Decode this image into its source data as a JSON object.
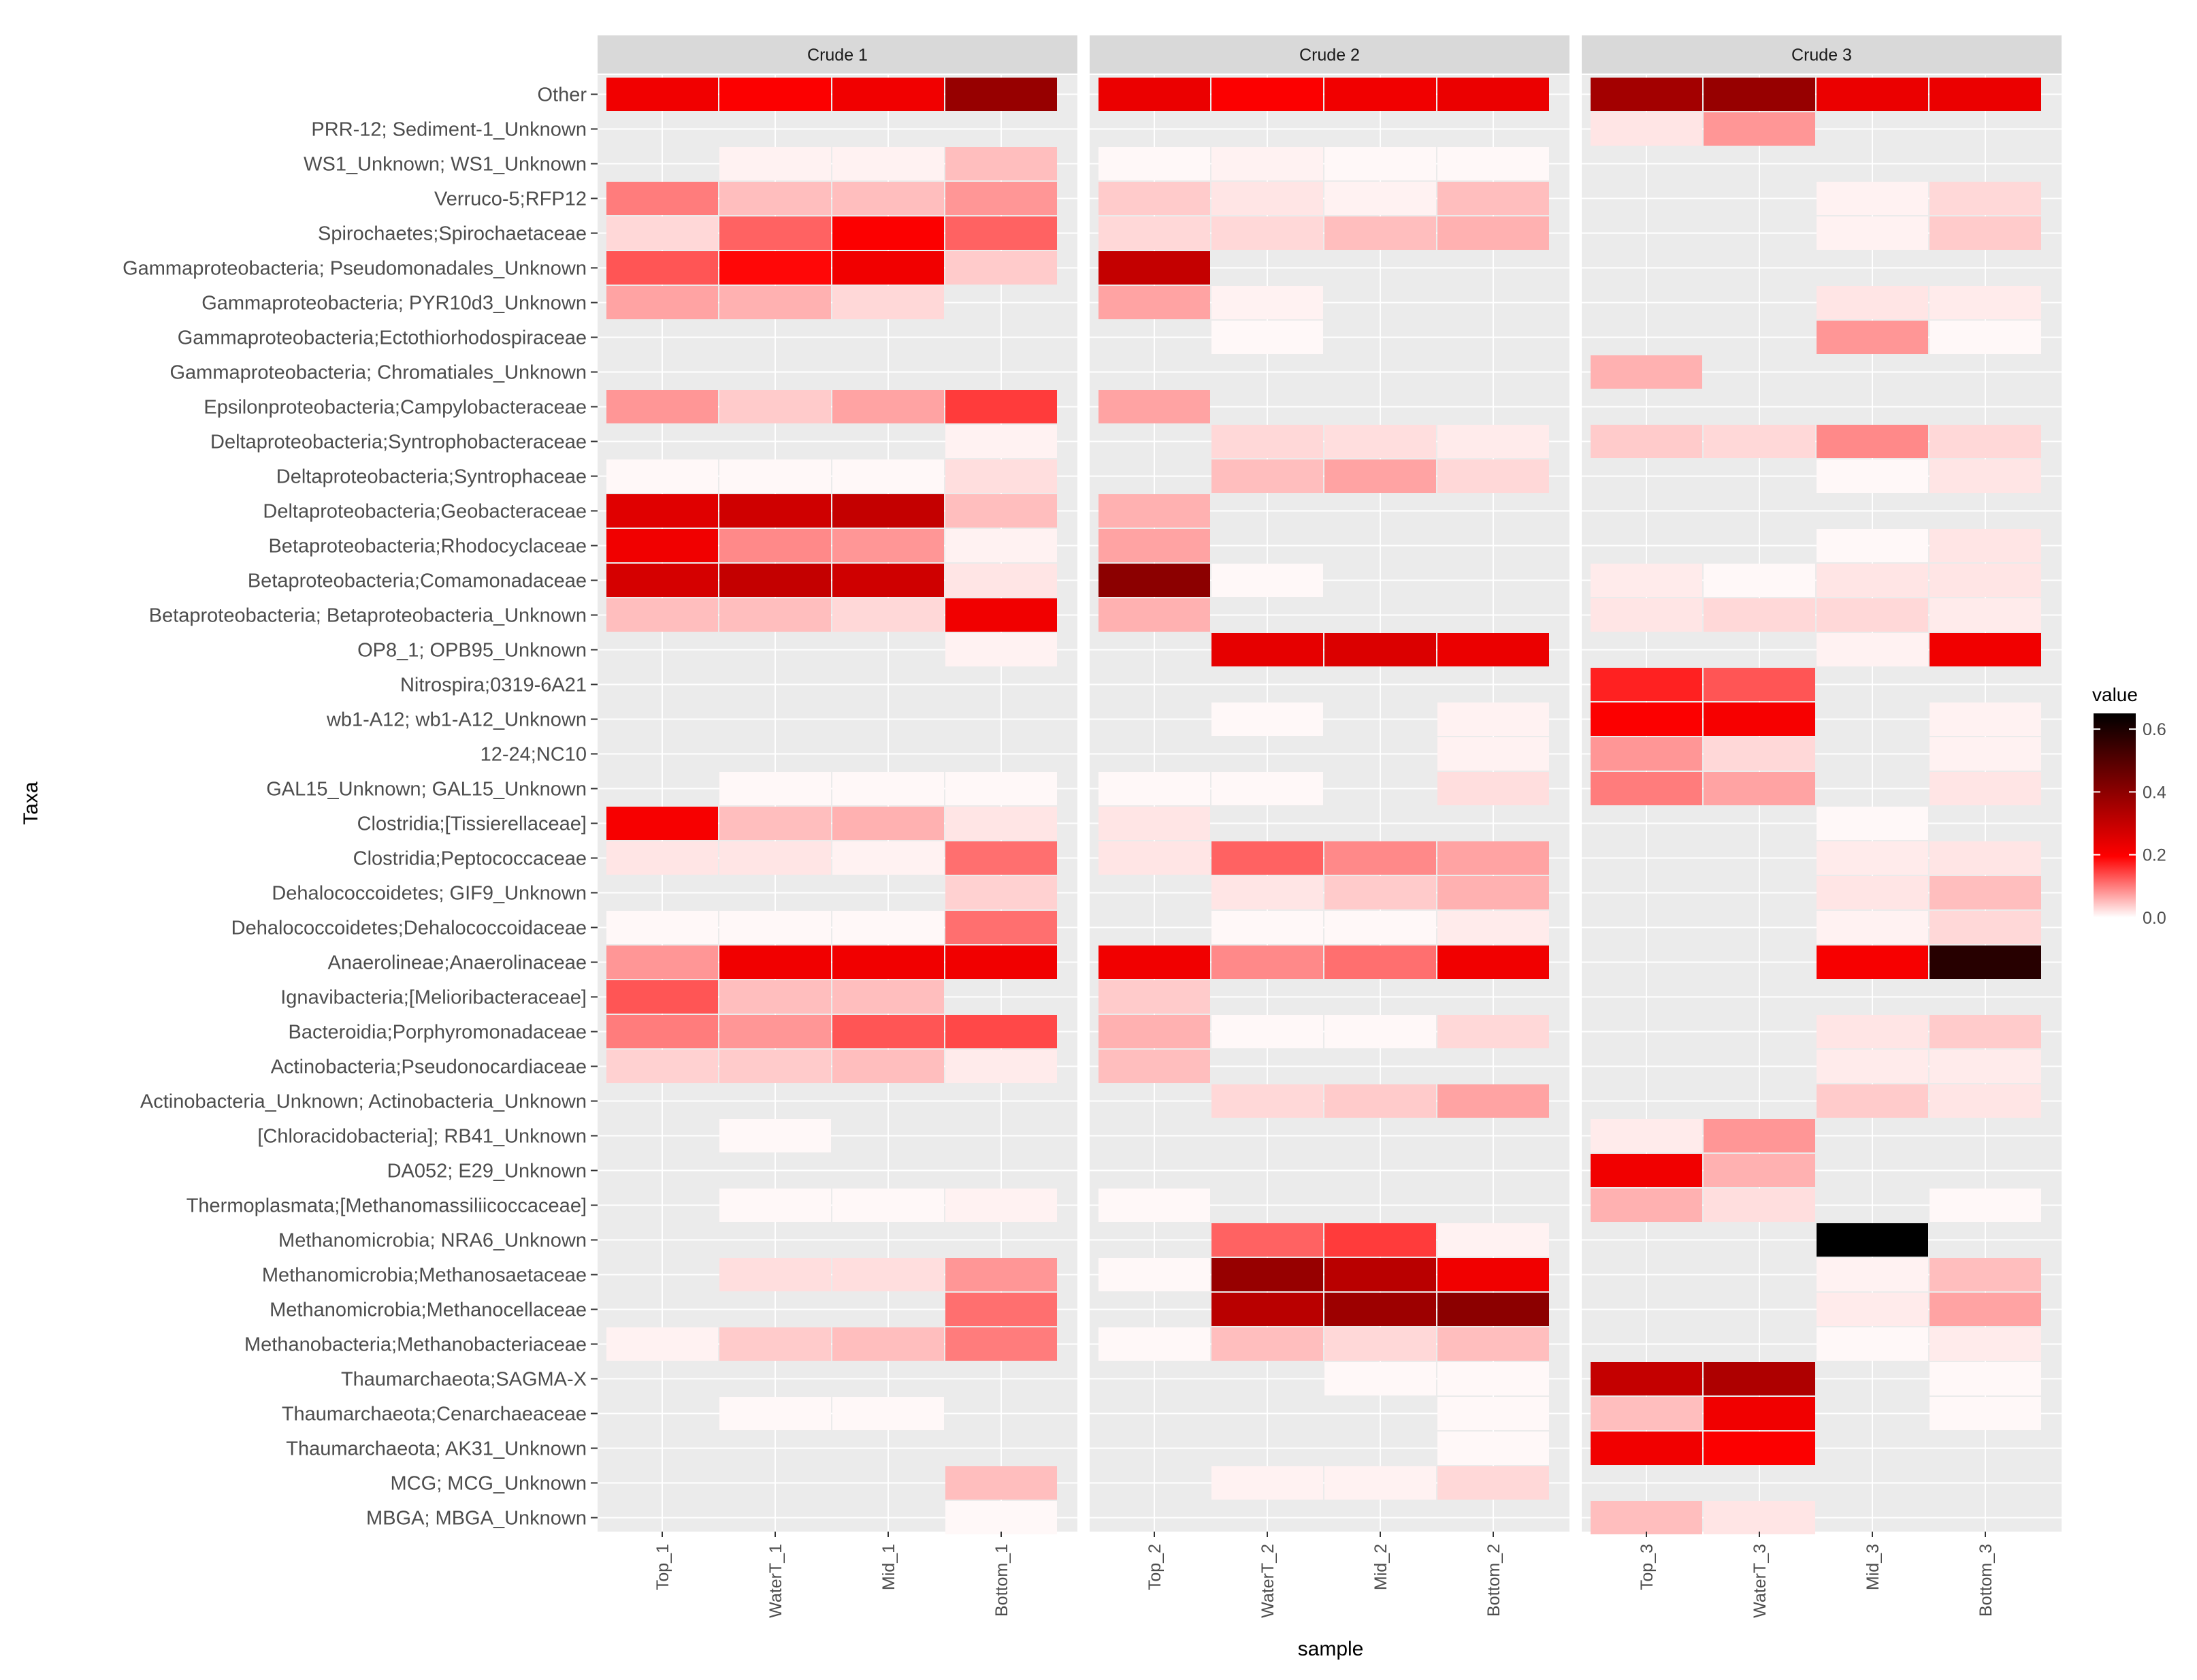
{
  "chart_data": {
    "type": "heatmap",
    "title": "",
    "xlabel": "sample",
    "ylabel": "Taxa",
    "facets": [
      {
        "label": "Crude 1",
        "samples": [
          "Top_1",
          "WaterT_1",
          "Mid_1",
          "Bottom_1"
        ]
      },
      {
        "label": "Crude 2",
        "samples": [
          "Top_2",
          "WaterT_2",
          "Mid_2",
          "Bottom_2"
        ]
      },
      {
        "label": "Crude 3",
        "samples": [
          "Top_3",
          "WaterT_3",
          "Mid_3",
          "Bottom_3"
        ]
      }
    ],
    "legend": {
      "title": "value",
      "ticks": [
        "0.0",
        "0.2",
        "0.4",
        "0.6"
      ],
      "range": [
        0,
        0.65
      ],
      "colors": [
        "#ffffff",
        "#ff0000",
        "#000000"
      ]
    },
    "taxa": [
      "Other",
      "PRR-12; Sediment-1_Unknown",
      "WS1_Unknown; WS1_Unknown",
      "Verruco-5;RFP12",
      "Spirochaetes;Spirochaetaceae",
      "Gammaproteobacteria; Pseudomonadales_Unknown",
      "Gammaproteobacteria; PYR10d3_Unknown",
      "Gammaproteobacteria;Ectothiorhodospiraceae",
      "Gammaproteobacteria; Chromatiales_Unknown",
      "Epsilonproteobacteria;Campylobacteraceae",
      "Deltaproteobacteria;Syntrophobacteraceae",
      "Deltaproteobacteria;Syntrophaceae",
      "Deltaproteobacteria;Geobacteraceae",
      "Betaproteobacteria;Rhodocyclaceae",
      "Betaproteobacteria;Comamonadaceae",
      "Betaproteobacteria; Betaproteobacteria_Unknown",
      "OP8_1; OPB95_Unknown",
      "Nitrospira;0319-6A21",
      "wb1-A12; wb1-A12_Unknown",
      "12-24;NC10",
      "GAL15_Unknown; GAL15_Unknown",
      "Clostridia;[Tissierellaceae]",
      "Clostridia;Peptococcaceae",
      "Dehalococcoidetes; GIF9_Unknown",
      "Dehalococcoidetes;Dehalococcoidaceae",
      "Anaerolineae;Anaerolinaceae",
      "Ignavibacteria;[Melioribacteraceae]",
      "Bacteroidia;Porphyromonadaceae",
      "Actinobacteria;Pseudonocardiaceae",
      "Actinobacteria_Unknown; Actinobacteria_Unknown",
      "[Chloracidobacteria]; RB41_Unknown",
      "DA052; E29_Unknown",
      "Thermoplasmata;[Methanomassiliicoccaceae]",
      "Methanomicrobia; NRA6_Unknown",
      "Methanomicrobia;Methanosaetaceae",
      "Methanomicrobia;Methanocellaceae",
      "Methanobacteria;Methanobacteriaceae",
      "Thaumarchaeota;SAGMA-X",
      "Thaumarchaeota;Cenarchaeaceae",
      "Thaumarchaeota; AK31_Unknown",
      "MCG; MCG_Unknown",
      "MBGA; MBGA_Unknown"
    ],
    "values": [
      [
        0.22,
        0.2,
        0.22,
        0.38,
        0.23,
        0.2,
        0.22,
        0.23,
        0.36,
        0.38,
        0.23,
        0.23
      ],
      [
        0,
        0,
        0,
        0,
        0,
        0,
        0,
        0,
        0.02,
        0.08,
        0,
        0
      ],
      [
        0,
        0.01,
        0.01,
        0.05,
        0.005,
        0.01,
        0.005,
        0.005,
        0,
        0,
        0,
        0
      ],
      [
        0.1,
        0.05,
        0.05,
        0.08,
        0.04,
        0.02,
        0.01,
        0.05,
        0,
        0,
        0.01,
        0.03
      ],
      [
        0.03,
        0.12,
        0.2,
        0.12,
        0.03,
        0.03,
        0.05,
        0.06,
        0,
        0,
        0.01,
        0.04
      ],
      [
        0.13,
        0.19,
        0.22,
        0.04,
        0.3,
        0,
        0,
        0,
        0,
        0,
        0,
        0
      ],
      [
        0.07,
        0.06,
        0.03,
        0,
        0.07,
        0.01,
        0,
        0,
        0,
        0,
        0.02,
        0.015
      ],
      [
        0,
        0,
        0,
        0,
        0,
        0.005,
        0,
        0,
        0,
        0,
        0.08,
        0.005
      ],
      [
        0,
        0,
        0,
        0,
        0,
        0,
        0,
        0,
        0.06,
        0,
        0,
        0
      ],
      [
        0.08,
        0.04,
        0.07,
        0.15,
        0.07,
        0,
        0,
        0,
        0,
        0,
        0,
        0
      ],
      [
        0,
        0,
        0,
        0.01,
        0,
        0.03,
        0.025,
        0.015,
        0.04,
        0.03,
        0.09,
        0.03
      ],
      [
        0.005,
        0.005,
        0.005,
        0.025,
        0,
        0.05,
        0.07,
        0.03,
        0,
        0,
        0.005,
        0.02
      ],
      [
        0.25,
        0.28,
        0.3,
        0.05,
        0.06,
        0,
        0,
        0,
        0,
        0,
        0,
        0
      ],
      [
        0.22,
        0.09,
        0.08,
        0.01,
        0.07,
        0,
        0,
        0,
        0,
        0,
        0.005,
        0.02
      ],
      [
        0.27,
        0.3,
        0.28,
        0.02,
        0.4,
        0.005,
        0,
        0,
        0.015,
        0.005,
        0.02,
        0.02
      ],
      [
        0.05,
        0.05,
        0.03,
        0.22,
        0.06,
        0,
        0,
        0,
        0.02,
        0.03,
        0.03,
        0.015
      ],
      [
        0,
        0,
        0,
        0.01,
        0,
        0.24,
        0.26,
        0.23,
        0,
        0,
        0.01,
        0.22
      ],
      [
        0,
        0,
        0,
        0,
        0,
        0,
        0,
        0,
        0.17,
        0.13,
        0,
        0
      ],
      [
        0,
        0,
        0,
        0,
        0,
        0.005,
        0,
        0.01,
        0.2,
        0.21,
        0,
        0.01
      ],
      [
        0,
        0,
        0,
        0,
        0,
        0,
        0,
        0.01,
        0.08,
        0.03,
        0,
        0.01
      ],
      [
        0,
        0.005,
        0.005,
        0.005,
        0.005,
        0.005,
        0,
        0.025,
        0.1,
        0.07,
        0,
        0.02
      ],
      [
        0.21,
        0.05,
        0.06,
        0.02,
        0.02,
        0,
        0,
        0,
        0,
        0,
        0.005,
        0
      ],
      [
        0.02,
        0.02,
        0.01,
        0.11,
        0.02,
        0.12,
        0.09,
        0.07,
        0,
        0,
        0.015,
        0.02
      ],
      [
        0,
        0,
        0,
        0.035,
        0,
        0.02,
        0.04,
        0.06,
        0,
        0,
        0.02,
        0.05
      ],
      [
        0.005,
        0.005,
        0.005,
        0.11,
        0,
        0.005,
        0.005,
        0.015,
        0,
        0,
        0.01,
        0.03
      ],
      [
        0.08,
        0.22,
        0.22,
        0.22,
        0.22,
        0.09,
        0.11,
        0.22,
        0,
        0,
        0.21,
        0.58
      ],
      [
        0.13,
        0.05,
        0.05,
        0,
        0.04,
        0,
        0,
        0,
        0,
        0,
        0,
        0
      ],
      [
        0.1,
        0.08,
        0.13,
        0.14,
        0.06,
        0.005,
        0.005,
        0.03,
        0,
        0,
        0.02,
        0.04
      ],
      [
        0.035,
        0.04,
        0.05,
        0.015,
        0.05,
        0,
        0,
        0,
        0,
        0,
        0.015,
        0.015
      ],
      [
        0,
        0,
        0,
        0,
        0,
        0.03,
        0.04,
        0.07,
        0,
        0,
        0.04,
        0.02
      ],
      [
        0,
        0.005,
        0,
        0,
        0,
        0,
        0,
        0,
        0.015,
        0.08,
        0,
        0
      ],
      [
        0,
        0,
        0,
        0,
        0,
        0,
        0,
        0,
        0.22,
        0.06,
        0,
        0
      ],
      [
        0,
        0.005,
        0.005,
        0.01,
        0.005,
        0,
        0,
        0,
        0.06,
        0.025,
        0,
        0.005
      ],
      [
        0,
        0,
        0,
        0,
        0,
        0.12,
        0.15,
        0.01,
        0,
        0,
        0.65,
        0
      ],
      [
        0,
        0.025,
        0.025,
        0.08,
        0.005,
        0.38,
        0.32,
        0.22,
        0,
        0,
        0.01,
        0.05
      ],
      [
        0,
        0,
        0,
        0.11,
        0,
        0.32,
        0.37,
        0.4,
        0,
        0,
        0.015,
        0.07
      ],
      [
        0.01,
        0.04,
        0.05,
        0.1,
        0.005,
        0.05,
        0.03,
        0.05,
        0,
        0,
        0.005,
        0.015
      ],
      [
        0,
        0,
        0,
        0,
        0,
        0,
        0.005,
        0.005,
        0.3,
        0.34,
        0,
        0.005
      ],
      [
        0,
        0.005,
        0.005,
        0,
        0,
        0,
        0,
        0.005,
        0.05,
        0.22,
        0,
        0.005
      ],
      [
        0,
        0,
        0,
        0,
        0,
        0,
        0,
        0.005,
        0.22,
        0.2,
        0,
        0
      ],
      [
        0,
        0,
        0,
        0.05,
        0,
        0.01,
        0.01,
        0.03,
        0,
        0,
        0,
        0
      ],
      [
        0,
        0,
        0,
        0.005,
        0,
        0,
        0,
        0,
        0.05,
        0.02,
        0,
        0
      ]
    ]
  }
}
